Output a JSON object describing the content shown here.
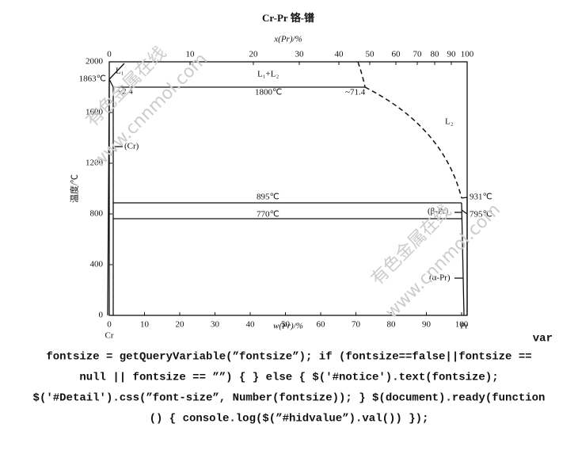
{
  "diagram": {
    "title": "Cr-Pr  铬-镨",
    "top_axis": {
      "label": "x(Pr)/%",
      "ticks": [
        0,
        10,
        20,
        30,
        40,
        50,
        60,
        70,
        80,
        90,
        100
      ]
    },
    "bottom_axis": {
      "label": "w(Pr)/%",
      "ticks": [
        0,
        10,
        20,
        30,
        40,
        50,
        60,
        70,
        80,
        90,
        100
      ]
    },
    "left_axis": {
      "label": "温度/℃",
      "ticks": [
        0,
        400,
        800,
        1200,
        1600,
        2000
      ]
    },
    "labels": [
      "L₁",
      "L₁+L₂",
      "L₂",
      "1863℃",
      "~2.4",
      "1800℃",
      "~71.4",
      "(Cr)",
      "895℃",
      "770℃",
      "931℃",
      "(β-Pr)",
      "795℃",
      "(α-Pr)",
      "Cr",
      "Pr"
    ],
    "watermarks": [
      "有色金属在线",
      "www.cnnmol.com",
      "有色金属在线",
      "www.cnnmol.com"
    ]
  },
  "code": {
    "lines": [
      "var",
      "fontsize = getQueryVariable(”fontsize”); if (fontsize==false||fontsize ==",
      "null || fontsize == ””) { } else { $('#notice').text(fontsize);",
      "$('#Detail').css(”font-size”, Number(fontsize)); } $(document).ready(function",
      "() { console.log($(”#hidvalue”).val()) });"
    ]
  }
}
